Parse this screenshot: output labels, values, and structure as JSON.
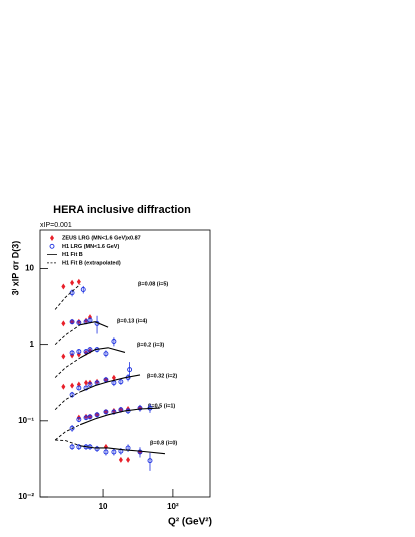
{
  "chart_data": {
    "type": "scatter",
    "title": "HERA inclusive diffraction",
    "subtitle": "xIP=0.001",
    "x_label": "Q² (GeV²)",
    "y_label": "3ⁱ xIP σr D(3)",
    "log_x": true,
    "log_y": true,
    "xlim": [
      1.25,
      340
    ],
    "ylim": [
      0.01,
      32
    ],
    "xticks": [
      10,
      {
        "value": 100,
        "label": "10²"
      }
    ],
    "yticks": [
      {
        "value": 0.01,
        "label": "10⁻²"
      },
      {
        "value": 0.1,
        "label": "10⁻¹"
      },
      1,
      10
    ],
    "annotations": [
      "β=0.08 (i=5)",
      "β=0.13 (i=4)",
      "β=0.2 (i=3)",
      "β=0.32 (i=2)",
      "β=0.5 (i=1)",
      "β=0.8 (i=0)"
    ],
    "series": [
      {
        "name": "ZEUS LRG (MN<1.6 GeV)x0.87",
        "color": "#e8202a",
        "marker": "diamond",
        "groups": [
          {
            "x": [
              2.7,
              3.6,
              4.5
            ],
            "values": [
              5.8,
              6.5,
              6.7
            ]
          },
          {
            "x": [
              2.7,
              3.6,
              4.5,
              5.7,
              6.5
            ],
            "values": [
              1.9,
              2.0,
              2.0,
              2.07,
              2.3
            ]
          },
          {
            "x": [
              2.7,
              3.6,
              4.5,
              5.7,
              6.5
            ],
            "values": [
              0.7,
              0.72,
              0.74,
              0.78,
              0.83
            ]
          },
          {
            "x": [
              2.7,
              3.6,
              4.5,
              5.7,
              6.5,
              8.2,
              11,
              14.3
            ],
            "values": [
              0.28,
              0.29,
              0.3,
              0.316,
              0.316,
              0.326,
              0.346,
              0.368
            ]
          },
          {
            "x": [
              4.5,
              5.7,
              6.5,
              8.2,
              11,
              14.3,
              18,
              22.8,
              33.8
            ],
            "values": [
              0.11,
              0.113,
              0.113,
              0.12,
              0.131,
              0.135,
              0.14,
              0.143,
              0.147
            ]
          },
          {
            "x": [
              11,
              18,
              22.8,
              33.8
            ],
            "values": [
              0.0455,
              0.0307,
              0.0307,
              0.039
            ]
          }
        ]
      },
      {
        "name": "H1 LRG (MN<1.6 GeV)",
        "color": "#1a2ee0",
        "marker": "circle",
        "groups": [
          {
            "x": [
              3.6,
              5.2
            ],
            "values": [
              4.8,
              5.3
            ],
            "errors": [
              0.5,
              0.6
            ]
          },
          {
            "x": [
              3.6,
              4.5,
              5.7,
              6.5,
              8.2
            ],
            "values": [
              2.0,
              1.95,
              2.0,
              2.1,
              1.9
            ],
            "errors": [
              0.15,
              0.15,
              0.15,
              0.2,
              0.5
            ]
          },
          {
            "x": [
              3.6,
              4.5,
              5.7,
              6.5,
              8.2,
              11,
              14.3
            ],
            "values": [
              0.78,
              0.81,
              0.81,
              0.86,
              0.86,
              0.76,
              1.1
            ],
            "errors": [
              0.06,
              0.06,
              0.06,
              0.07,
              0.07,
              0.08,
              0.15
            ]
          },
          {
            "x": [
              3.6,
              4.5,
              5.7,
              6.5,
              8.2,
              11,
              14.3,
              18,
              22.8,
              24
            ],
            "values": [
              0.22,
              0.27,
              0.27,
              0.3,
              0.316,
              0.346,
              0.316,
              0.326,
              0.37,
              0.47
            ],
            "errors": [
              0.02,
              0.02,
              0.02,
              0.02,
              0.025,
              0.03,
              0.03,
              0.03,
              0.04,
              0.12
            ]
          },
          {
            "x": [
              3.6,
              4.5,
              5.7,
              6.5,
              8.2,
              11,
              14.3,
              18,
              22.8,
              33.8,
              47
            ],
            "values": [
              0.08,
              0.104,
              0.11,
              0.113,
              0.12,
              0.131,
              0.131,
              0.14,
              0.135,
              0.147,
              0.147
            ],
            "errors": [
              0.008,
              0.008,
              0.008,
              0.009,
              0.01,
              0.01,
              0.011,
              0.012,
              0.012,
              0.015,
              0.02
            ]
          },
          {
            "x": [
              3.6,
              4.5,
              5.7,
              6.5,
              8.2,
              11,
              14.3,
              18,
              22.8,
              33.8,
              47
            ],
            "values": [
              0.0455,
              0.0455,
              0.0455,
              0.0455,
              0.0429,
              0.039,
              0.039,
              0.04,
              0.044,
              0.039,
              0.03
            ],
            "errors": [
              0.004,
              0.004,
              0.004,
              0.004,
              0.004,
              0.004,
              0.004,
              0.004,
              0.005,
              0.006,
              0.008
            ]
          }
        ]
      },
      {
        "name": "H1 Fit B",
        "color": "#000000",
        "marker": "line",
        "groups": [
          {
            "x": [],
            "values": []
          },
          {
            "x": [
              4.7,
              7.7,
              11.8
            ],
            "values": [
              1.83,
              2.0,
              1.7
            ]
          },
          {
            "x": [
              4.7,
              7.7,
              11.8,
              20.6
            ],
            "values": [
              0.67,
              0.86,
              0.91,
              0.79
            ]
          },
          {
            "x": [
              4.7,
              7.7,
              11.8,
              20.6,
              33.8
            ],
            "values": [
              0.24,
              0.29,
              0.326,
              0.368,
              0.4
            ]
          },
          {
            "x": [
              4.7,
              7.7,
              11.8,
              20.6,
              33.8,
              65
            ],
            "values": [
              0.089,
              0.106,
              0.12,
              0.135,
              0.143,
              0.147
            ]
          },
          {
            "x": [
              4.7,
              7.7,
              11.8,
              20.6,
              33.8,
              77
            ],
            "values": [
              0.047,
              0.044,
              0.044,
              0.0415,
              0.04,
              0.037
            ]
          }
        ]
      },
      {
        "name": "H1 Fit B (extrapolated)",
        "color": "#000000",
        "marker": "dashed",
        "groups": [
          {
            "x": [
              2.06,
              2.9,
              4.7
            ],
            "values": [
              2.9,
              4.2,
              6.2
            ]
          },
          {
            "x": [
              2.06,
              2.9,
              4.7
            ],
            "values": [
              1.0,
              1.35,
              1.83
            ]
          },
          {
            "x": [
              2.06,
              2.9,
              4.7
            ],
            "values": [
              0.37,
              0.5,
              0.67
            ]
          },
          {
            "x": [
              2.06,
              2.9,
              4.7
            ],
            "values": [
              0.14,
              0.19,
              0.24
            ]
          },
          {
            "x": [
              2.06,
              2.9,
              4.7
            ],
            "values": [
              0.056,
              0.072,
              0.089
            ]
          },
          {
            "x": [
              2.06,
              2.9,
              4.7
            ],
            "values": [
              0.056,
              0.055,
              0.047
            ]
          }
        ]
      }
    ]
  }
}
